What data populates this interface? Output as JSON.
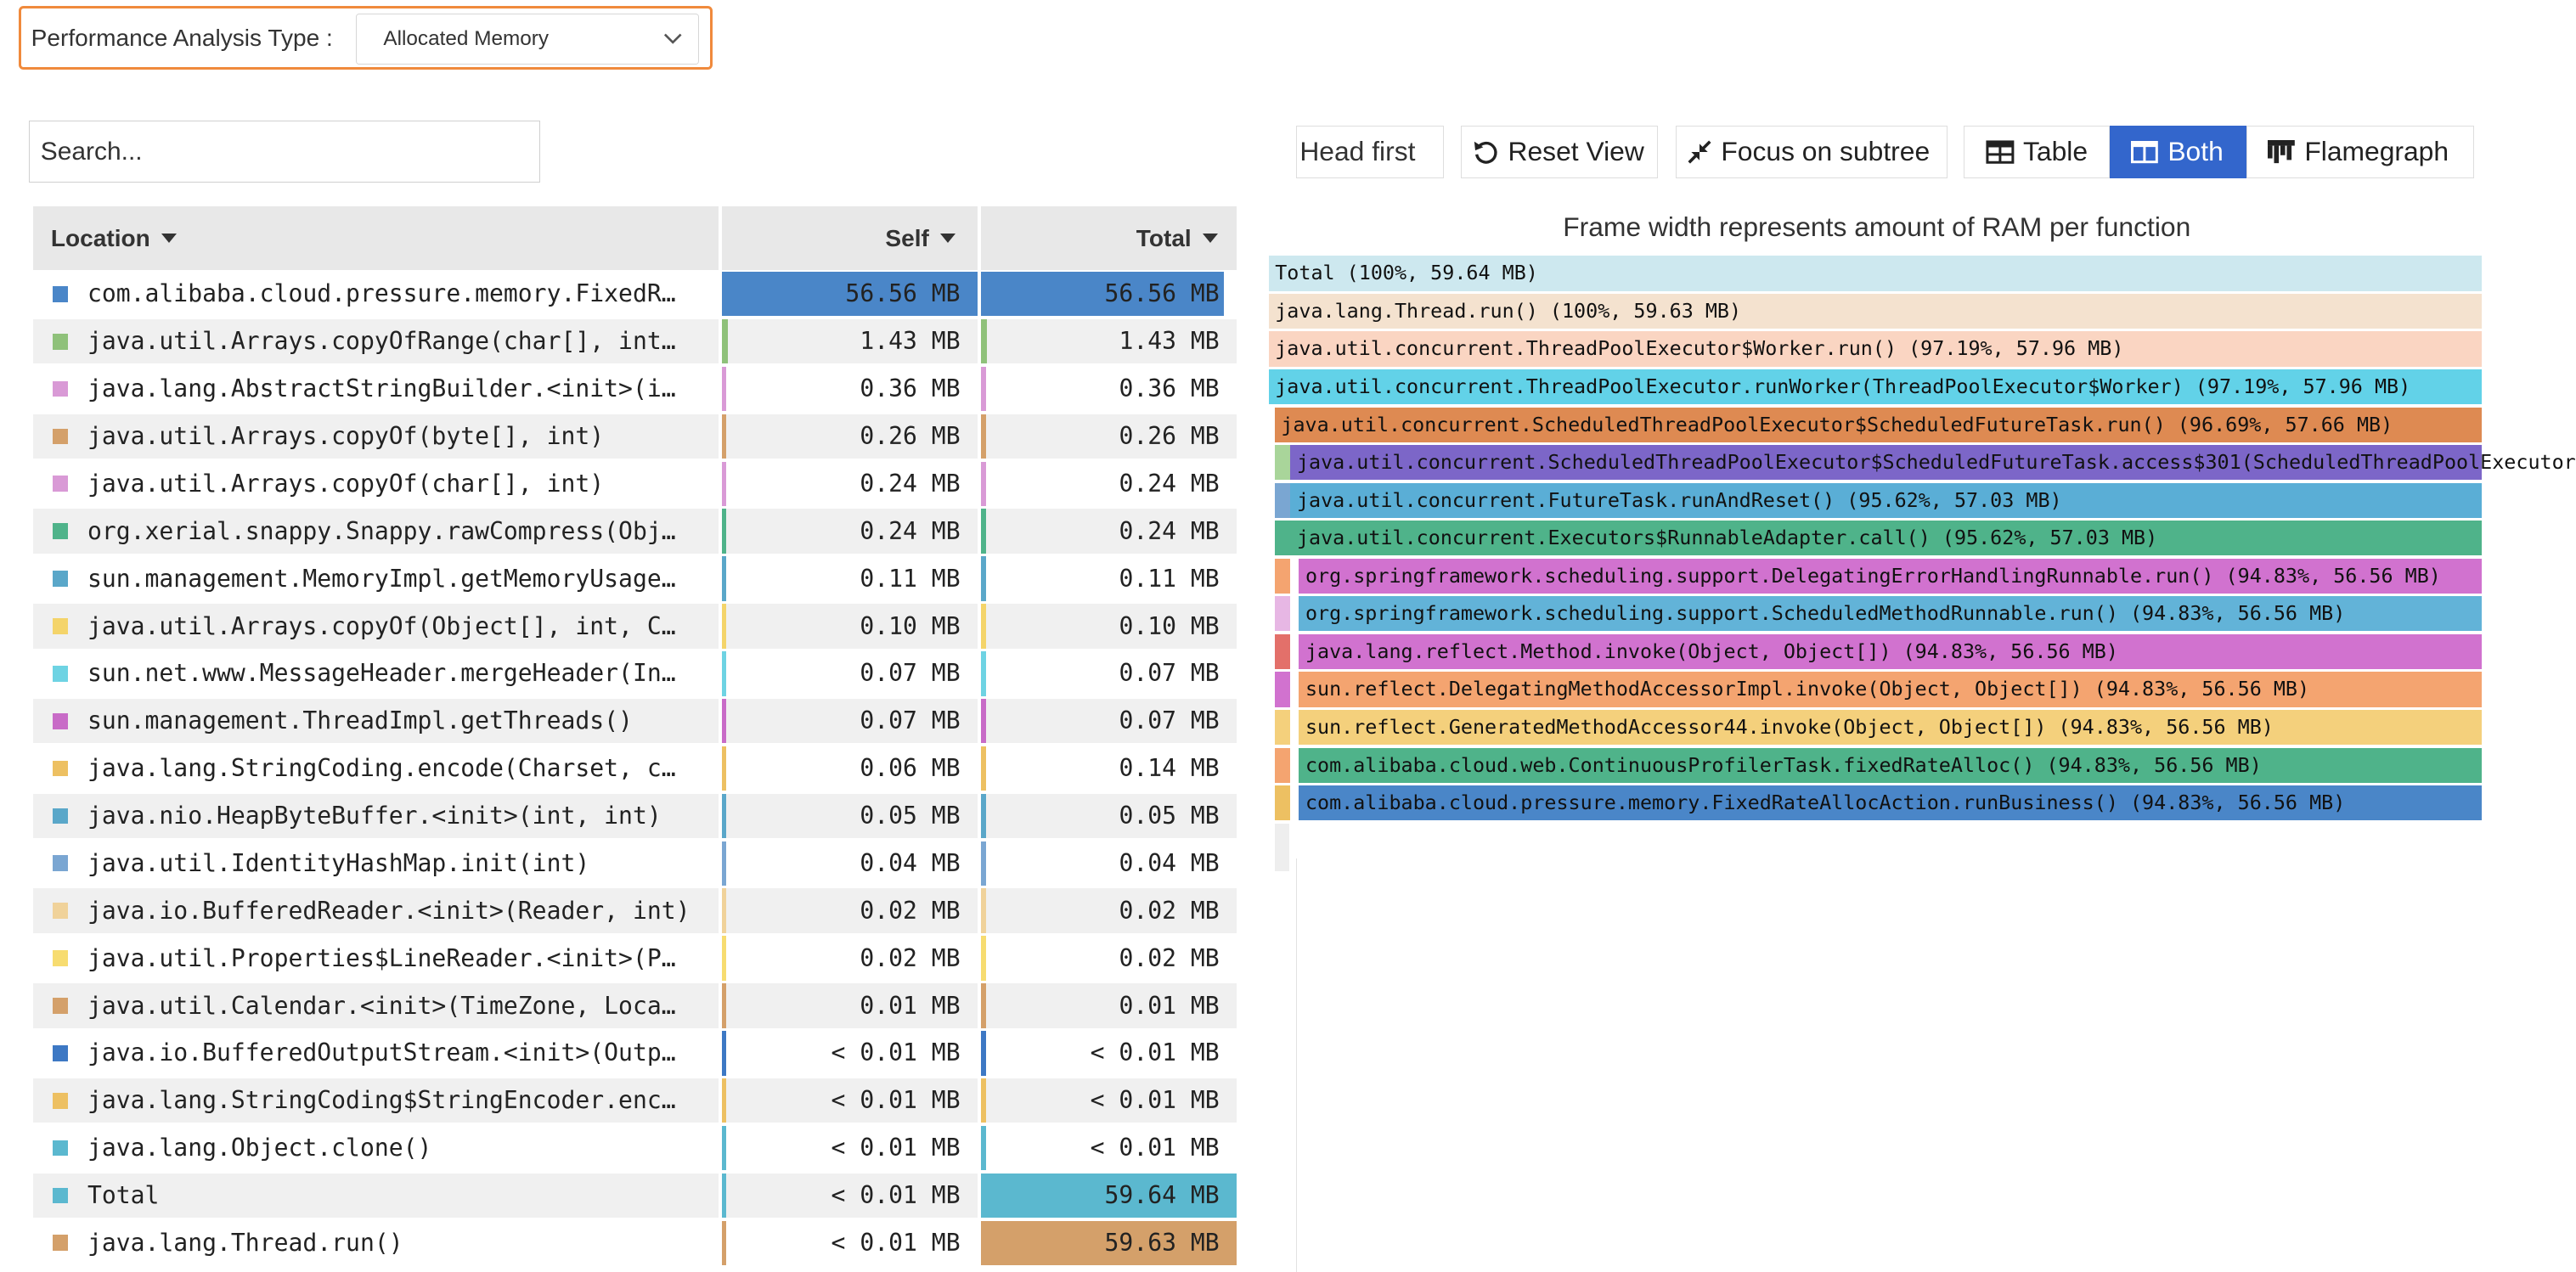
{
  "analysis": {
    "label": "Performance Analysis Type :",
    "selected": "Allocated Memory"
  },
  "search": {
    "placeholder": "Search..."
  },
  "table": {
    "headers": {
      "location": "Location",
      "self": "Self",
      "total": "Total"
    },
    "rows": [
      {
        "location": "com.alibaba.cloud.pressure.memory.FixedR…",
        "self": "56.56 MB",
        "total": "56.56 MB",
        "color": "#4a86c8",
        "self_frac": 1.0,
        "total_frac": 0.948
      },
      {
        "location": "java.util.Arrays.copyOfRange(char[], int…",
        "self": "1.43 MB",
        "total": "1.43 MB",
        "color": "#8fc17a",
        "self_frac": 0.025,
        "total_frac": 0.024
      },
      {
        "location": "java.lang.AbstractStringBuilder.<init>(i…",
        "self": "0.36 MB",
        "total": "0.36 MB",
        "color": "#d99ad6",
        "self_frac": 0.006,
        "total_frac": 0.006
      },
      {
        "location": "java.util.Arrays.copyOf(byte[], int)",
        "self": "0.26 MB",
        "total": "0.26 MB",
        "color": "#d4a06a",
        "self_frac": 0.005,
        "total_frac": 0.004
      },
      {
        "location": "java.util.Arrays.copyOf(char[], int)",
        "self": "0.24 MB",
        "total": "0.24 MB",
        "color": "#d99ad6",
        "self_frac": 0.004,
        "total_frac": 0.004
      },
      {
        "location": "org.xerial.snappy.Snappy.rawCompress(Obj…",
        "self": "0.24 MB",
        "total": "0.24 MB",
        "color": "#4fb38a",
        "self_frac": 0.004,
        "total_frac": 0.004
      },
      {
        "location": "sun.management.MemoryImpl.getMemoryUsage…",
        "self": "0.11 MB",
        "total": "0.11 MB",
        "color": "#5aa7c9",
        "self_frac": 0.002,
        "total_frac": 0.002
      },
      {
        "location": "java.util.Arrays.copyOf(Object[], int, C…",
        "self": "0.10 MB",
        "total": "0.10 MB",
        "color": "#f4d46a",
        "self_frac": 0.002,
        "total_frac": 0.002
      },
      {
        "location": "sun.net.www.MessageHeader.mergeHeader(In…",
        "self": "0.07 MB",
        "total": "0.07 MB",
        "color": "#6ed3e3",
        "self_frac": 0.001,
        "total_frac": 0.001
      },
      {
        "location": "sun.management.ThreadImpl.getThreads()",
        "self": "0.07 MB",
        "total": "0.07 MB",
        "color": "#c86bc7",
        "self_frac": 0.001,
        "total_frac": 0.001
      },
      {
        "location": "java.lang.StringCoding.encode(Charset, c…",
        "self": "0.06 MB",
        "total": "0.14 MB",
        "color": "#edc062",
        "self_frac": 0.001,
        "total_frac": 0.002
      },
      {
        "location": "java.nio.HeapByteBuffer.<init>(int, int)",
        "self": "0.05 MB",
        "total": "0.05 MB",
        "color": "#5aa7c9",
        "self_frac": 0.001,
        "total_frac": 0.001
      },
      {
        "location": "java.util.IdentityHashMap.init(int)",
        "self": "0.04 MB",
        "total": "0.04 MB",
        "color": "#7aa6d2",
        "self_frac": 0.001,
        "total_frac": 0.001
      },
      {
        "location": "java.io.BufferedReader.<init>(Reader, int)",
        "self": "0.02 MB",
        "total": "0.02 MB",
        "color": "#f0d29a",
        "self_frac": 0.0005,
        "total_frac": 0.0005
      },
      {
        "location": "java.util.Properties$LineReader.<init>(P…",
        "self": "0.02 MB",
        "total": "0.02 MB",
        "color": "#f7dc70",
        "self_frac": 0.0005,
        "total_frac": 0.0005
      },
      {
        "location": "java.util.Calendar.<init>(TimeZone, Loca…",
        "self": "0.01 MB",
        "total": "0.01 MB",
        "color": "#d4a06a",
        "self_frac": 0.0002,
        "total_frac": 0.0002
      },
      {
        "location": "java.io.BufferedOutputStream.<init>(Outp…",
        "self": "< 0.01 MB",
        "total": "< 0.01 MB",
        "color": "#3d78c4",
        "self_frac": 0.0001,
        "total_frac": 0.0001
      },
      {
        "location": "java.lang.StringCoding$StringEncoder.enc…",
        "self": "< 0.01 MB",
        "total": "< 0.01 MB",
        "color": "#edc062",
        "self_frac": 0.0001,
        "total_frac": 0.0001
      },
      {
        "location": "java.lang.Object.clone()",
        "self": "< 0.01 MB",
        "total": "< 0.01 MB",
        "color": "#5bb8cf",
        "self_frac": 0.0001,
        "total_frac": 0.0001
      },
      {
        "location": "Total",
        "self": "< 0.01 MB",
        "total": "59.64 MB",
        "color": "#5bb8cf",
        "self_frac": 0.0001,
        "total_frac": 1.0
      },
      {
        "location": "java.lang.Thread.run()",
        "self": "< 0.01 MB",
        "total": "59.63 MB",
        "color": "#d4a06a",
        "self_frac": 0.0001,
        "total_frac": 0.9998
      }
    ]
  },
  "toolbar": {
    "head_first": "Head first",
    "reset_view": "Reset View",
    "focus_subtree": "Focus on subtree",
    "table": "Table",
    "both": "Both",
    "flamegraph": "Flamegraph"
  },
  "flame": {
    "title": "Frame width represents amount of RAM per function",
    "frames": [
      {
        "label": "Total (100%, 59.64 MB)",
        "depth": 0,
        "start": 0.0,
        "frac": 1.0,
        "color": "#cde8ef"
      },
      {
        "label": "java.lang.Thread.run() (100%, 59.63 MB)",
        "depth": 1,
        "start": 0.0,
        "frac": 1.0,
        "color": "#f4e2cf"
      },
      {
        "label": "java.util.concurrent.ThreadPoolExecutor$Worker.run() (97.19%, 57.96 MB)",
        "depth": 2,
        "start": 0.0,
        "frac": 0.9719,
        "color": "#fad5c2"
      },
      {
        "label": "java.util.concurrent.ThreadPoolExecutor.runWorker(ThreadPoolExecutor$Worker) (97.19%, 57.96 MB)",
        "depth": 3,
        "start": 0.0,
        "frac": 0.9719,
        "color": "#62d2e8"
      },
      {
        "label": "java.util.concurrent.ScheduledThreadPoolExecutor$ScheduledFutureTask.run() (96.69%, 57.66 MB)",
        "depth": 4,
        "start": 0.005,
        "frac": 0.9669,
        "color": "#de8a52"
      },
      {
        "label": "java.util.concurrent.ScheduledThreadPoolExecutor$ScheduledFutureTask.access$301(ScheduledThreadPoolExecutor",
        "depth": 5,
        "start": 0.018,
        "frac": 0.9562,
        "color": "#7c66c8"
      },
      {
        "label": "java.util.concurrent.FutureTask.runAndReset() (95.62%, 57.03 MB)",
        "depth": 6,
        "start": 0.018,
        "frac": 0.9562,
        "color": "#5aaed6"
      },
      {
        "label": "java.util.concurrent.Executors$RunnableAdapter.call() (95.62%, 57.03 MB)",
        "depth": 7,
        "start": 0.018,
        "frac": 0.9562,
        "color": "#4fb38a"
      },
      {
        "label": "org.springframework.scheduling.support.DelegatingErrorHandlingRunnable.run() (94.83%, 56.56 MB)",
        "depth": 8,
        "start": 0.025,
        "frac": 0.9483,
        "color": "#d172cf"
      },
      {
        "label": "org.springframework.scheduling.support.ScheduledMethodRunnable.run() (94.83%, 56.56 MB)",
        "depth": 9,
        "start": 0.025,
        "frac": 0.9483,
        "color": "#62b3d8"
      },
      {
        "label": "java.lang.reflect.Method.invoke(Object, Object[]) (94.83%, 56.56 MB)",
        "depth": 10,
        "start": 0.025,
        "frac": 0.9483,
        "color": "#d172cf"
      },
      {
        "label": "sun.reflect.DelegatingMethodAccessorImpl.invoke(Object, Object[]) (94.83%, 56.56 MB)",
        "depth": 11,
        "start": 0.025,
        "frac": 0.9483,
        "color": "#f4a470"
      },
      {
        "label": "sun.reflect.GeneratedMethodAccessor44.invoke(Object, Object[]) (94.83%, 56.56 MB)",
        "depth": 12,
        "start": 0.025,
        "frac": 0.9483,
        "color": "#f4d07c"
      },
      {
        "label": "com.alibaba.cloud.web.ContinuousProfilerTask.fixedRateAlloc() (94.83%, 56.56 MB)",
        "depth": 13,
        "start": 0.025,
        "frac": 0.9483,
        "color": "#4fb38a"
      },
      {
        "label": "com.alibaba.cloud.pressure.memory.FixedRateAllocAction.runBusiness() (94.83%, 56.56 MB)",
        "depth": 14,
        "start": 0.025,
        "frac": 0.9483,
        "color": "#4a86c8"
      }
    ],
    "slivers": [
      {
        "depth": 5,
        "start": 0.005,
        "frac": 0.013,
        "color": "#a9d59a"
      },
      {
        "depth": 6,
        "start": 0.005,
        "frac": 0.013,
        "color": "#7aa6d2"
      },
      {
        "depth": 7,
        "start": 0.005,
        "frac": 0.013,
        "color": "#4fb38a"
      },
      {
        "depth": 8,
        "start": 0.005,
        "frac": 0.013,
        "color": "#f4a470"
      },
      {
        "depth": 9,
        "start": 0.005,
        "frac": 0.013,
        "color": "#e7b7e4"
      },
      {
        "depth": 10,
        "start": 0.005,
        "frac": 0.013,
        "color": "#e3706a"
      },
      {
        "depth": 11,
        "start": 0.005,
        "frac": 0.013,
        "color": "#d172cf"
      },
      {
        "depth": 12,
        "start": 0.005,
        "frac": 0.013,
        "color": "#f4d07c"
      },
      {
        "depth": 13,
        "start": 0.005,
        "frac": 0.013,
        "color": "#f4a470"
      },
      {
        "depth": 14,
        "start": 0.005,
        "frac": 0.013,
        "color": "#edc062"
      }
    ]
  }
}
